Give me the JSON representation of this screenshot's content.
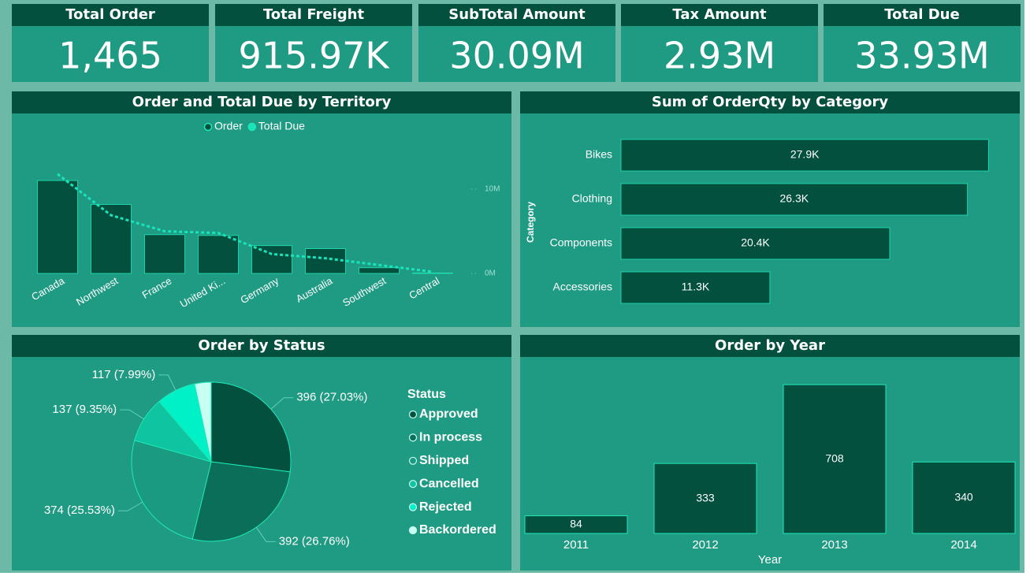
{
  "kpis": [
    {
      "title": "Total Order",
      "value": "1,465"
    },
    {
      "title": "Total Freight",
      "value": "915.97K"
    },
    {
      "title": "SubTotal Amount",
      "value": "30.09M"
    },
    {
      "title": "Tax Amount",
      "value": "2.93M"
    },
    {
      "title": "Total Due",
      "value": "33.93M"
    }
  ],
  "chart_data": [
    {
      "type": "combo",
      "title": "Order and Total Due by Territory",
      "categories": [
        "Canada",
        "Northwest",
        "France",
        "United Ki...",
        "Germany",
        "Australia",
        "Southwest",
        "Central"
      ],
      "series": [
        {
          "name": "Order",
          "kind": "bar",
          "color": "#03503f",
          "values": [
            458,
            340,
            191,
            187,
            137,
            122,
            28,
            2
          ]
        },
        {
          "name": "Total Due",
          "kind": "line",
          "axis": "y2",
          "color": "#19e3bb",
          "values": [
            11800000,
            6900000,
            5000000,
            4800000,
            2300000,
            1800000,
            1000000,
            200000
          ]
        }
      ],
      "ylim": [
        0,
        540
      ],
      "y2lim": [
        0,
        13000000
      ],
      "y2ticks": [
        {
          "value": 0,
          "label": "0M"
        },
        {
          "value": 10000000,
          "label": "10M"
        }
      ]
    },
    {
      "type": "hbar",
      "title": "Sum of OrderQty by Category",
      "y_label": "Category",
      "categories": [
        "Bikes",
        "Clothing",
        "Components",
        "Accessories"
      ],
      "values": [
        27900,
        26300,
        20400,
        11300
      ],
      "value_labels": [
        "27.9K",
        "26.3K",
        "20.4K",
        "11.3K"
      ],
      "color": "#03503f",
      "xlim": [
        0,
        28000
      ]
    },
    {
      "type": "pie",
      "title": "Order by Status",
      "legend_title": "Status",
      "categories": [
        "Approved",
        "In process",
        "Shipped",
        "Cancelled",
        "Rejected",
        "Backordered"
      ],
      "values": [
        396,
        392,
        374,
        137,
        117,
        49
      ],
      "value_labels": [
        "396 (27.03%)",
        "392 (26.76%)",
        "374 (25.53%)",
        "137 (9.35%)",
        "117 (7.99%)",
        null
      ],
      "colors": [
        "#03503f",
        "#0b6e58",
        "#1a9a80",
        "#0fc4a0",
        "#00f0c8",
        "#c8fff3"
      ]
    },
    {
      "type": "bar",
      "title": "Order by Year",
      "x_label": "Year",
      "categories": [
        "2011",
        "2012",
        "2013",
        "2014"
      ],
      "values": [
        84,
        333,
        708,
        340
      ],
      "color": "#03503f",
      "ylim": [
        0,
        750
      ]
    }
  ]
}
